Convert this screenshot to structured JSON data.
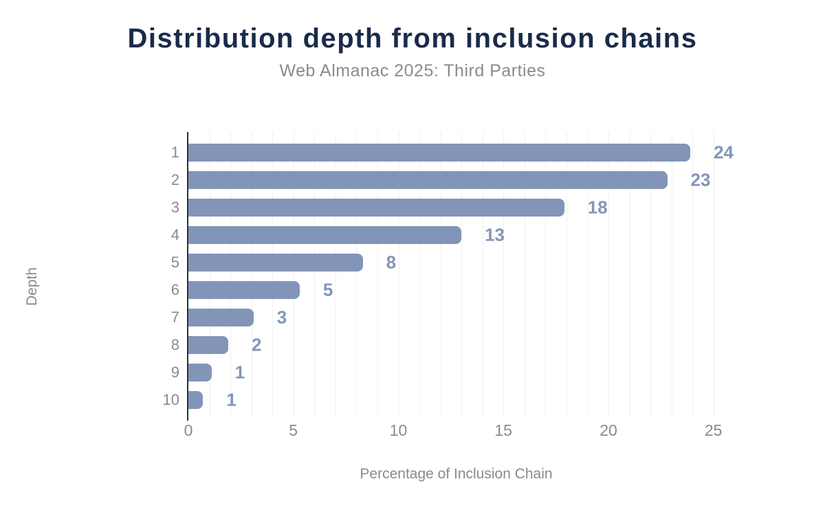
{
  "chart_data": {
    "type": "bar",
    "orientation": "horizontal",
    "title": "Distribution depth from inclusion chains",
    "subtitle": "Web Almanac 2025: Third Parties",
    "xlabel": "Percentage of Inclusion Chain",
    "ylabel": "Depth",
    "categories": [
      "1",
      "2",
      "3",
      "4",
      "5",
      "6",
      "7",
      "8",
      "9",
      "10"
    ],
    "values": [
      23.9,
      22.8,
      17.9,
      13.0,
      8.3,
      5.3,
      3.1,
      1.9,
      1.1,
      0.7
    ],
    "value_labels": [
      "24",
      "23",
      "18",
      "13",
      "8",
      "5",
      "3",
      "2",
      "1",
      "1"
    ],
    "xlim": [
      0,
      25.5
    ],
    "xticks": [
      0,
      5,
      10,
      15,
      20,
      25
    ],
    "grid": "vertical gridlines every 1 unit",
    "legend": "none",
    "colors": {
      "bar": "#8295b8",
      "value_label": "#8295b8",
      "title": "#1a2b4a",
      "subtitle": "#8b8b8b",
      "axis_text": "#8a8a8a",
      "axis_line": "#2f2f2f",
      "gridline": "#f0f0f2",
      "background": "#ffffff"
    }
  }
}
